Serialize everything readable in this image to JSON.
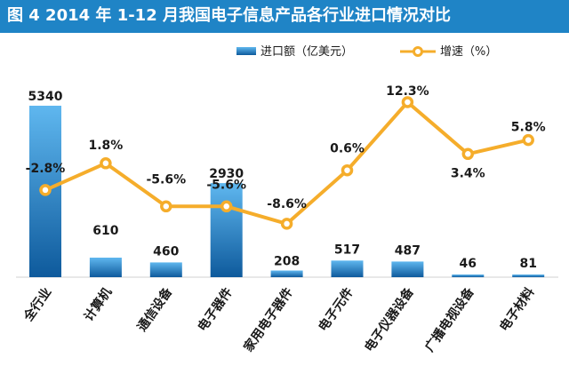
{
  "chart_data": {
    "type": "bar",
    "title": "图 4 2014 年 1-12 月我国电子信息产品各行业进口情况对比",
    "categories": [
      "全行业",
      "计算机",
      "通信设备",
      "电子器件",
      "家用电子器件",
      "电子元件",
      "电子仪器设备",
      "广播电视设备",
      "电子材料"
    ],
    "series": [
      {
        "name": "进口额（亿美元）",
        "type": "bar",
        "values": [
          5340,
          610,
          460,
          2930,
          208,
          517,
          487,
          46,
          81
        ],
        "labels": [
          "5340",
          "610",
          "460",
          "2930",
          "208",
          "517",
          "487",
          "46",
          "81"
        ]
      },
      {
        "name": "增速（%）",
        "type": "line",
        "values": [
          -2.8,
          1.8,
          -5.6,
          -5.6,
          -8.6,
          0.6,
          12.3,
          3.4,
          5.8
        ],
        "labels": [
          "-2.8%",
          "1.8%",
          "-5.6%",
          "-5.6%",
          "-8.6%",
          "0.6%",
          "12.3%",
          "3.4%",
          "5.8%"
        ]
      }
    ],
    "legend_position": "top-right",
    "grid": false
  },
  "colors": {
    "title_bar": "#1f84c6",
    "bar_top": "#5fb7ef",
    "bar_bottom": "#0e5a9c",
    "line": "#f5ad2b",
    "marker_fill": "#ffffff"
  }
}
